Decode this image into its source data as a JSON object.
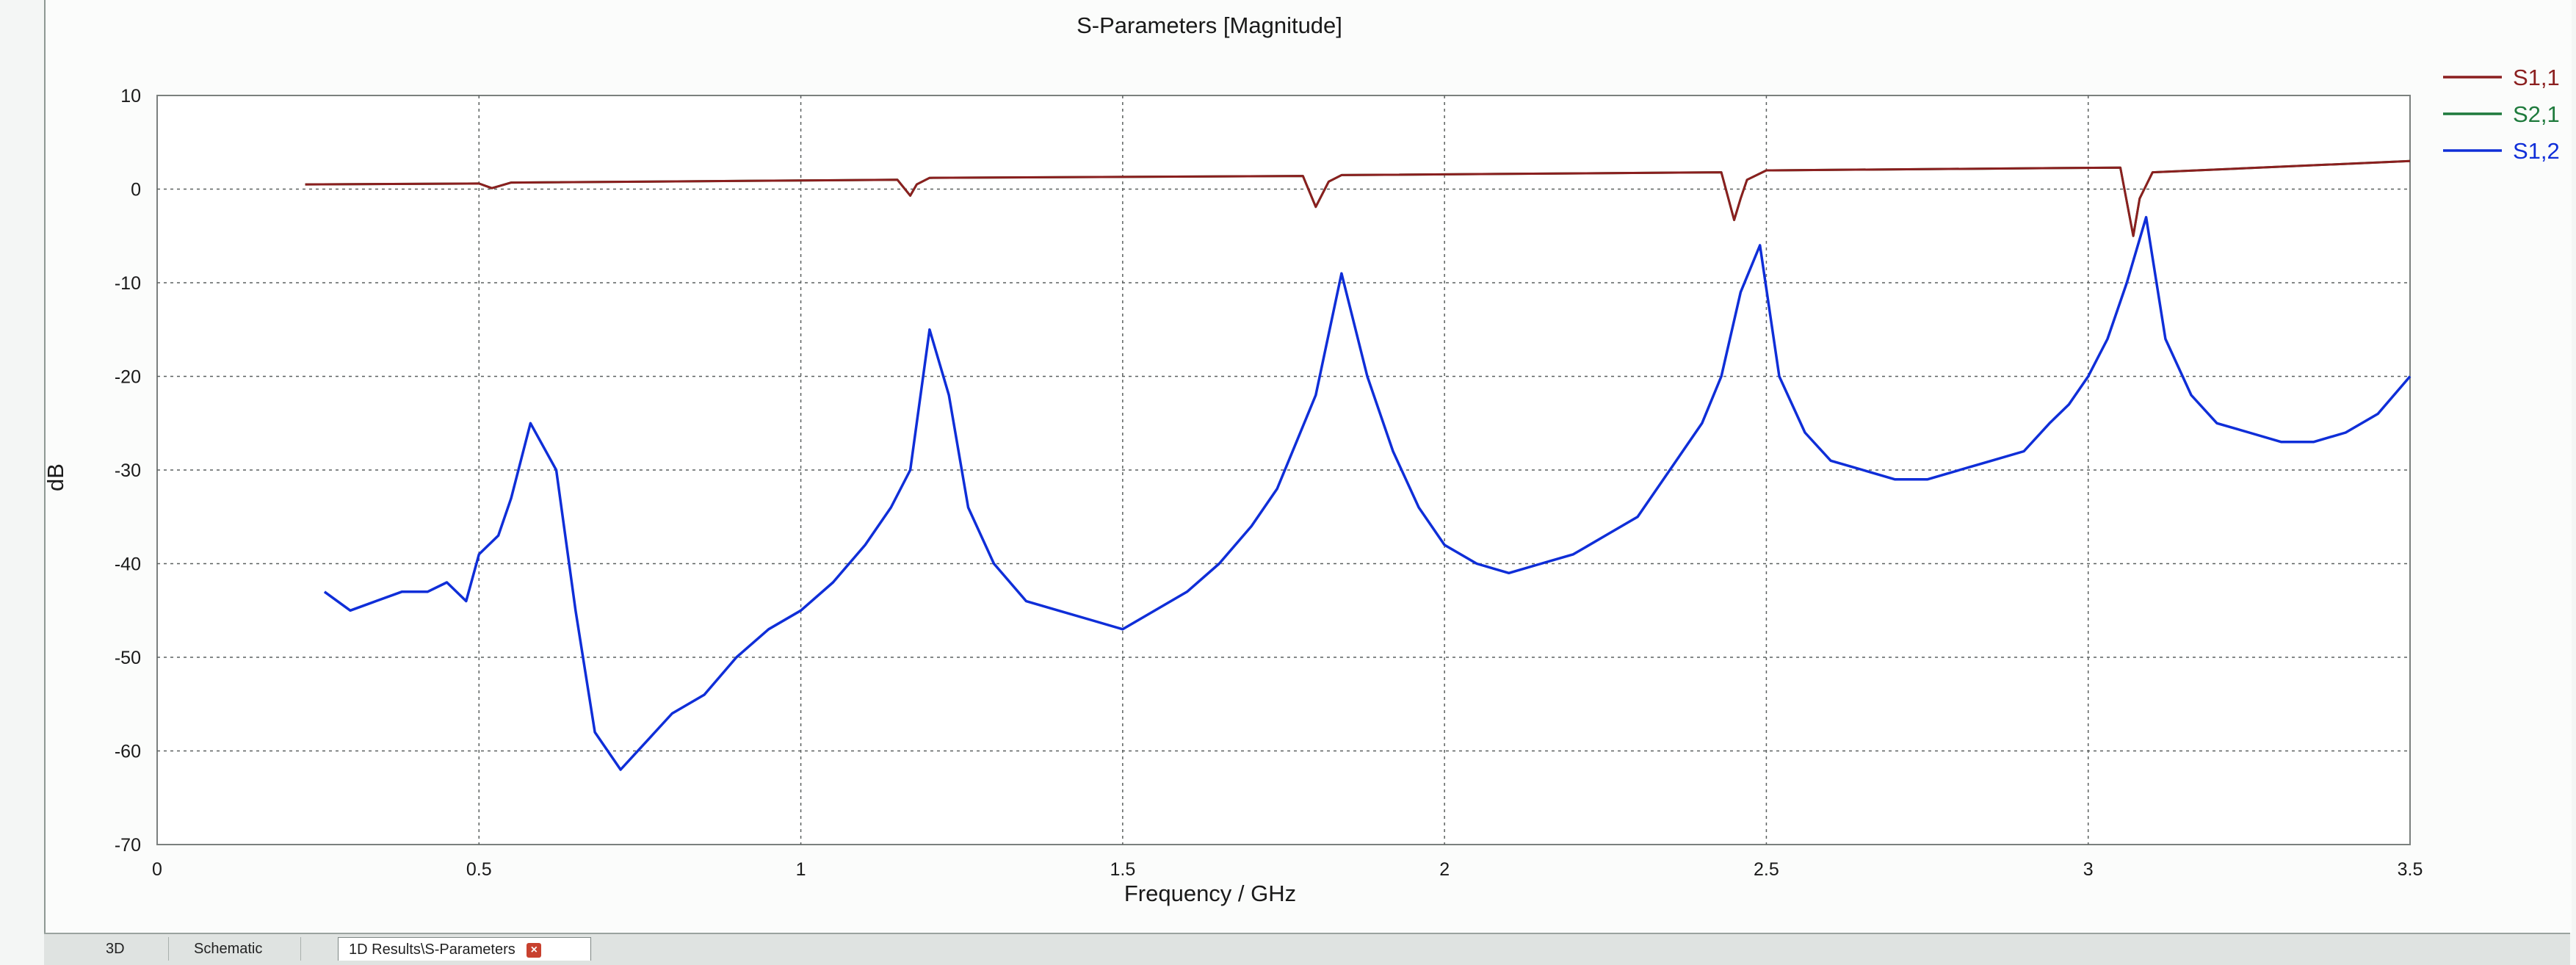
{
  "window": {
    "tabs": [
      {
        "label": "3D"
      },
      {
        "label": "Schematic"
      },
      {
        "label": "1D Results\\S-Parameters"
      }
    ],
    "close_icon": "close-icon"
  },
  "chart_data": {
    "type": "line",
    "title": "S-Parameters [Magnitude]",
    "xlabel": "Frequency / GHz",
    "ylabel": "dB",
    "xlim": [
      0,
      3.5
    ],
    "ylim": [
      -70,
      10
    ],
    "x_ticks": [
      "0",
      "0.5",
      "1",
      "1.5",
      "2",
      "2.5",
      "3",
      "3.5"
    ],
    "y_ticks": [
      "10",
      "0",
      "-10",
      "-20",
      "-30",
      "-40",
      "-50",
      "-60",
      "-70"
    ],
    "grid": true,
    "legend_position": "top-right",
    "series": [
      {
        "name": "S1,1",
        "color": "#8b1f1f",
        "x": [
          0.23,
          0.5,
          0.52,
          0.53,
          0.55,
          1.15,
          1.17,
          1.18,
          1.2,
          1.78,
          1.8,
          1.82,
          1.84,
          2.43,
          2.45,
          2.46,
          2.47,
          2.5,
          3.05,
          3.07,
          3.08,
          3.1,
          3.5
        ],
        "y": [
          0.5,
          0.6,
          0.1,
          0.3,
          0.7,
          1.0,
          -0.7,
          0.5,
          1.2,
          1.4,
          -1.9,
          0.8,
          1.5,
          1.8,
          -3.3,
          -1.0,
          1.0,
          2.0,
          2.3,
          -5.0,
          -1.0,
          1.8,
          3.0
        ]
      },
      {
        "name": "S2,1",
        "color": "#1e7a3c",
        "x": [
          0.23,
          0.5,
          0.52,
          0.53,
          0.55,
          1.15,
          1.17,
          1.18,
          1.2,
          1.78,
          1.8,
          1.82,
          1.84,
          2.43,
          2.45,
          2.46,
          2.47,
          2.5,
          3.05,
          3.07,
          3.08,
          3.1,
          3.5
        ],
        "y": [
          0.5,
          0.6,
          0.1,
          0.3,
          0.7,
          1.0,
          -0.7,
          0.5,
          1.2,
          1.4,
          -1.9,
          0.8,
          1.5,
          1.8,
          -3.3,
          -1.0,
          1.0,
          2.0,
          2.3,
          -5.0,
          -1.0,
          1.8,
          3.0
        ]
      },
      {
        "name": "S1,2",
        "color": "#0f2ed8",
        "x": [
          0.26,
          0.3,
          0.34,
          0.38,
          0.42,
          0.45,
          0.48,
          0.5,
          0.53,
          0.55,
          0.58,
          0.62,
          0.65,
          0.68,
          0.72,
          0.76,
          0.8,
          0.85,
          0.9,
          0.95,
          1.0,
          1.05,
          1.1,
          1.14,
          1.17,
          1.2,
          1.23,
          1.26,
          1.3,
          1.35,
          1.4,
          1.45,
          1.5,
          1.55,
          1.6,
          1.65,
          1.7,
          1.74,
          1.77,
          1.8,
          1.84,
          1.88,
          1.92,
          1.96,
          2.0,
          2.05,
          2.1,
          2.15,
          2.2,
          2.25,
          2.3,
          2.34,
          2.37,
          2.4,
          2.43,
          2.46,
          2.49,
          2.52,
          2.56,
          2.6,
          2.65,
          2.7,
          2.75,
          2.8,
          2.85,
          2.9,
          2.94,
          2.97,
          3.0,
          3.03,
          3.06,
          3.09,
          3.12,
          3.16,
          3.2,
          3.25,
          3.3,
          3.35,
          3.4,
          3.45,
          3.5
        ],
        "y": [
          -43,
          -45,
          -44,
          -43,
          -43,
          -42,
          -44,
          -39,
          -37,
          -33,
          -25,
          -30,
          -45,
          -58,
          -62,
          -59,
          -56,
          -54,
          -50,
          -47,
          -45,
          -42,
          -38,
          -34,
          -30,
          -15,
          -22,
          -34,
          -40,
          -44,
          -45,
          -46,
          -47,
          -45,
          -43,
          -40,
          -36,
          -32,
          -27,
          -22,
          -9,
          -20,
          -28,
          -34,
          -38,
          -40,
          -41,
          -40,
          -39,
          -37,
          -35,
          -31,
          -28,
          -25,
          -20,
          -11,
          -6,
          -20,
          -26,
          -29,
          -30,
          -31,
          -31,
          -30,
          -29,
          -28,
          -25,
          -23,
          -20,
          -16,
          -10,
          -3,
          -16,
          -22,
          -25,
          -26,
          -27,
          -27,
          -26,
          -24,
          -20
        ]
      }
    ]
  }
}
